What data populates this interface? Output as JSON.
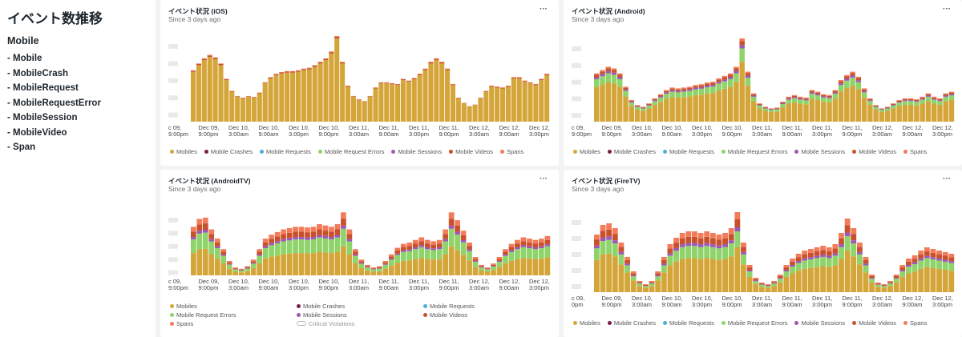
{
  "sidebar": {
    "title": "イベント数推移",
    "subtitle": "Mobile",
    "items": [
      "- Mobile",
      "- MobileCrash",
      "- MobileRequest",
      "- MobileRequestError",
      "- MobileSession",
      "- MobileVideo",
      "- Span"
    ]
  },
  "legend_items": [
    {
      "label": "Mobiles",
      "color": "#d4a63a"
    },
    {
      "label": "Mobile Crashes",
      "color": "#7a1b4e"
    },
    {
      "label": "Mobile Requests",
      "color": "#4aaed6"
    },
    {
      "label": "Mobile Request Errors",
      "color": "#8fd46a"
    },
    {
      "label": "Mobile Sessions",
      "color": "#9b59b6"
    },
    {
      "label": "Mobile Videos",
      "color": "#c8502a"
    },
    {
      "label": "Spans",
      "color": "#f27c5a"
    }
  ],
  "critical_violations_label": "Critical Violations",
  "menu_glyph": "···",
  "x_labels": [
    [
      "c 09,",
      "9:00pm"
    ],
    [
      "Dec 09,",
      "9:00pm"
    ],
    [
      "Dec 10,",
      "3:00am"
    ],
    [
      "Dec 10,",
      "9:00am"
    ],
    [
      "Dec 10,",
      "3:00pm"
    ],
    [
      "Dec 10,",
      "9:00pm"
    ],
    [
      "Dec 11,",
      "3:00am"
    ],
    [
      "Dec 11,",
      "9:00am"
    ],
    [
      "Dec 11,",
      "3:00pm"
    ],
    [
      "Dec 11,",
      "9:00pm"
    ],
    [
      "Dec 12,",
      "3:00am"
    ],
    [
      "Dec 12,",
      "9:00am"
    ],
    [
      "Dec 12,",
      "3:00pm"
    ]
  ],
  "fire_first_label": [
    "c 09,",
    "0pm"
  ],
  "panels": {
    "ios": {
      "title": "イベント状況 (iOS)",
      "subtitle": "Since 3 days ago"
    },
    "android": {
      "title": "イベント状況 (Android)",
      "subtitle": "Since 3 days ago"
    },
    "androidtv": {
      "title": "イベント状況 (AndroidTV)",
      "subtitle": "Since 3 days ago"
    },
    "firetv": {
      "title": "イベント状況 (FireTV)",
      "subtitle": "Since 3 days ago"
    }
  },
  "chart_data": [
    {
      "type": "bar",
      "title": "イベント状況 (iOS)",
      "stacked": true,
      "series_names": [
        "Mobiles",
        "Mobile Crashes",
        "Mobile Requests",
        "Mobile Request Errors",
        "Mobile Sessions",
        "Mobile Videos",
        "Spans"
      ],
      "profile": [
        0.6,
        0.68,
        0.74,
        0.78,
        0.75,
        0.68,
        0.5,
        0.36,
        0.3,
        0.28,
        0.3,
        0.29,
        0.34,
        0.46,
        0.52,
        0.56,
        0.58,
        0.59,
        0.59,
        0.6,
        0.62,
        0.63,
        0.66,
        0.7,
        0.74,
        0.82,
        1.0,
        0.7,
        0.42,
        0.3,
        0.26,
        0.24,
        0.3,
        0.4,
        0.46,
        0.46,
        0.45,
        0.44,
        0.5,
        0.48,
        0.51,
        0.56,
        0.62,
        0.7,
        0.74,
        0.7,
        0.62,
        0.44,
        0.28,
        0.22,
        0.18,
        0.2,
        0.28,
        0.36,
        0.42,
        0.41,
        0.4,
        0.42,
        0.52,
        0.52,
        0.48,
        0.46,
        0.44,
        0.5,
        0.56
      ],
      "split": {
        "Mobiles": 0.97,
        "Mobile Videos": 0.02,
        "Spans": 0.01
      }
    },
    {
      "type": "bar",
      "title": "イベント状況 (Android)",
      "stacked": true,
      "series_names": [
        "Mobiles",
        "Mobile Crashes",
        "Mobile Requests",
        "Mobile Request Errors",
        "Mobile Sessions",
        "Mobile Videos",
        "Spans"
      ],
      "profile": [
        0.58,
        0.62,
        0.66,
        0.64,
        0.58,
        0.42,
        0.26,
        0.2,
        0.18,
        0.22,
        0.28,
        0.33,
        0.38,
        0.41,
        0.4,
        0.41,
        0.42,
        0.44,
        0.45,
        0.47,
        0.48,
        0.52,
        0.55,
        0.58,
        0.66,
        1.0,
        0.6,
        0.34,
        0.22,
        0.18,
        0.16,
        0.17,
        0.24,
        0.3,
        0.32,
        0.3,
        0.29,
        0.38,
        0.36,
        0.33,
        0.32,
        0.38,
        0.5,
        0.56,
        0.6,
        0.54,
        0.4,
        0.28,
        0.2,
        0.16,
        0.18,
        0.22,
        0.26,
        0.28,
        0.28,
        0.27,
        0.3,
        0.34,
        0.3,
        0.28,
        0.34,
        0.36
      ],
      "split": {
        "Mobiles": 0.72,
        "Mobile Request Errors": 0.16,
        "Mobile Sessions": 0.04,
        "Mobile Videos": 0.05,
        "Spans": 0.03
      }
    },
    {
      "type": "bar",
      "title": "イベント状況 (AndroidTV)",
      "stacked": true,
      "series_names": [
        "Mobiles",
        "Mobile Crashes",
        "Mobile Requests",
        "Mobile Request Errors",
        "Mobile Sessions",
        "Mobile Videos",
        "Spans"
      ],
      "profile": [
        0.74,
        0.86,
        0.88,
        0.7,
        0.56,
        0.4,
        0.22,
        0.12,
        0.1,
        0.14,
        0.24,
        0.4,
        0.56,
        0.62,
        0.66,
        0.7,
        0.72,
        0.74,
        0.74,
        0.73,
        0.74,
        0.78,
        0.76,
        0.74,
        0.78,
        0.96,
        0.7,
        0.4,
        0.24,
        0.16,
        0.12,
        0.14,
        0.22,
        0.32,
        0.42,
        0.48,
        0.5,
        0.54,
        0.58,
        0.54,
        0.52,
        0.54,
        0.7,
        0.96,
        0.84,
        0.68,
        0.5,
        0.28,
        0.16,
        0.12,
        0.18,
        0.28,
        0.4,
        0.48,
        0.54,
        0.58,
        0.56,
        0.54,
        0.56,
        0.6
      ],
      "split": {
        "Mobiles": 0.46,
        "Mobile Request Errors": 0.28,
        "Mobile Sessions": 0.05,
        "Mobile Videos": 0.11,
        "Spans": 0.1
      }
    },
    {
      "type": "bar",
      "title": "イベント状況 (FireTV)",
      "stacked": true,
      "series_names": [
        "Mobiles",
        "Mobile Crashes",
        "Mobile Requests",
        "Mobile Request Errors",
        "Mobile Sessions",
        "Mobile Videos",
        "Spans"
      ],
      "profile": [
        0.72,
        0.84,
        0.86,
        0.8,
        0.62,
        0.44,
        0.26,
        0.14,
        0.1,
        0.14,
        0.26,
        0.44,
        0.6,
        0.68,
        0.74,
        0.76,
        0.76,
        0.74,
        0.76,
        0.74,
        0.72,
        0.74,
        0.8,
        1.0,
        0.62,
        0.34,
        0.18,
        0.12,
        0.1,
        0.14,
        0.22,
        0.34,
        0.42,
        0.48,
        0.52,
        0.54,
        0.56,
        0.58,
        0.56,
        0.6,
        0.74,
        0.92,
        0.8,
        0.62,
        0.44,
        0.22,
        0.12,
        0.1,
        0.14,
        0.22,
        0.34,
        0.42,
        0.46,
        0.52,
        0.56,
        0.54,
        0.52,
        0.5,
        0.48
      ],
      "split": {
        "Mobiles": 0.56,
        "Mobile Request Errors": 0.2,
        "Mobile Sessions": 0.05,
        "Mobile Videos": 0.1,
        "Spans": 0.09
      }
    }
  ]
}
